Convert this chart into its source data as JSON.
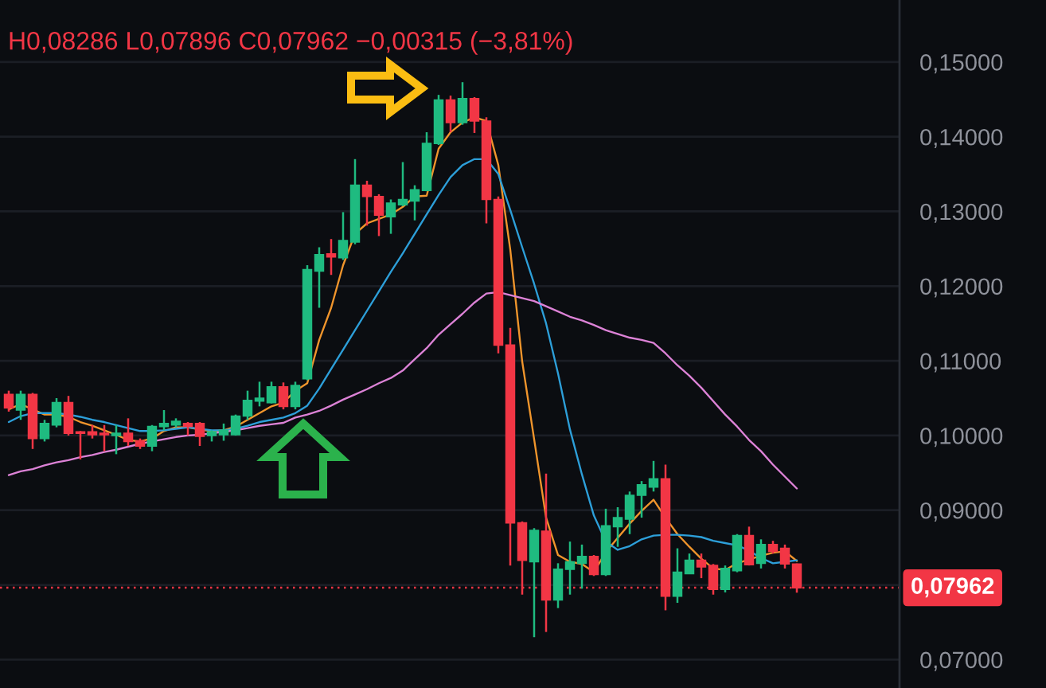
{
  "chart_data": {
    "type": "candlestick",
    "categories": [
      null,
      null,
      null,
      null,
      null,
      null,
      null,
      null,
      null,
      null,
      null,
      null,
      null,
      null,
      null,
      null,
      null,
      null,
      null,
      null,
      null,
      null,
      null,
      null,
      null,
      null,
      null,
      null,
      null,
      null,
      null,
      null,
      null,
      null,
      null,
      null,
      null,
      null,
      null,
      null,
      null,
      null,
      null,
      null,
      null,
      null,
      null,
      null,
      null,
      null,
      null,
      null,
      null,
      null,
      null,
      null,
      null,
      null,
      null,
      null,
      null,
      null,
      null,
      null,
      null,
      null,
      null
    ],
    "ohlc": [
      [
        0.1055,
        0.106,
        0.1032,
        0.1037
      ],
      [
        0.1034,
        0.106,
        0.1021,
        0.1055
      ],
      [
        0.1055,
        0.1057,
        0.0982,
        0.0996
      ],
      [
        0.0996,
        0.1021,
        0.0992,
        0.1016
      ],
      [
        0.1014,
        0.105,
        0.1011,
        0.1044
      ],
      [
        0.1044,
        0.1053,
        0.1,
        0.1003
      ],
      [
        0.1005,
        0.1006,
        0.0968,
        0.1003
      ],
      [
        0.1005,
        0.1014,
        0.0996,
        0.1001
      ],
      [
        0.1003,
        0.1014,
        0.0979,
        0.1001
      ],
      [
        0.1,
        0.1014,
        0.0975,
        0.1003
      ],
      [
        0.1003,
        0.1023,
        0.0986,
        0.0992
      ],
      [
        0.0993,
        0.0996,
        0.0982,
        0.0986
      ],
      [
        0.0986,
        0.1014,
        0.0979,
        0.1012
      ],
      [
        0.1012,
        0.1034,
        0.1007,
        0.1016
      ],
      [
        0.1014,
        0.1023,
        0.1011,
        0.1019
      ],
      [
        0.1016,
        0.1018,
        0.1,
        0.1012
      ],
      [
        0.1016,
        0.1018,
        0.0986,
        0.0999
      ],
      [
        0.1,
        0.1007,
        0.0992,
        0.1005
      ],
      [
        0.1001,
        0.1016,
        0.0993,
        0.1007
      ],
      [
        0.1001,
        0.1028,
        0.1,
        0.1026
      ],
      [
        0.1026,
        0.106,
        0.1021,
        0.1047
      ],
      [
        0.1046,
        0.1072,
        0.1039,
        0.105
      ],
      [
        0.1044,
        0.1072,
        0.1043,
        0.1065
      ],
      [
        0.1065,
        0.1071,
        0.1035,
        0.1039
      ],
      [
        0.1039,
        0.1072,
        0.1035,
        0.1067
      ],
      [
        0.1076,
        0.1228,
        0.1074,
        0.1222
      ],
      [
        0.122,
        0.1252,
        0.1171,
        0.1242
      ],
      [
        0.1243,
        0.1263,
        0.1215,
        0.1239
      ],
      [
        0.1238,
        0.1299,
        0.1235,
        0.1261
      ],
      [
        0.1259,
        0.137,
        0.1256,
        0.1335
      ],
      [
        0.1335,
        0.1341,
        0.1281,
        0.132
      ],
      [
        0.132,
        0.1323,
        0.1267,
        0.1295
      ],
      [
        0.1293,
        0.1316,
        0.127,
        0.1311
      ],
      [
        0.1309,
        0.1366,
        0.1307,
        0.1316
      ],
      [
        0.1314,
        0.1335,
        0.1288,
        0.1329
      ],
      [
        0.1328,
        0.1406,
        0.1327,
        0.1391
      ],
      [
        0.1391,
        0.1456,
        0.1389,
        0.1449
      ],
      [
        0.1449,
        0.1455,
        0.1406,
        0.1419
      ],
      [
        0.1419,
        0.1473,
        0.1416,
        0.1451
      ],
      [
        0.1451,
        0.1453,
        0.1405,
        0.1421
      ],
      [
        0.1421,
        0.1426,
        0.1284,
        0.1316
      ],
      [
        0.1316,
        0.132,
        0.111,
        0.1121
      ],
      [
        0.1121,
        0.1144,
        0.0826,
        0.0883
      ],
      [
        0.0883,
        0.0885,
        0.0787,
        0.0833
      ],
      [
        0.0831,
        0.0876,
        0.073,
        0.0873
      ],
      [
        0.0872,
        0.0949,
        0.0737,
        0.078
      ],
      [
        0.078,
        0.0829,
        0.0769,
        0.0821
      ],
      [
        0.0821,
        0.0858,
        0.0787,
        0.0831
      ],
      [
        0.0829,
        0.0854,
        0.0795,
        0.0838
      ],
      [
        0.0838,
        0.084,
        0.0812,
        0.0814
      ],
      [
        0.0814,
        0.0902,
        0.0812,
        0.0879
      ],
      [
        0.0878,
        0.0904,
        0.0851,
        0.089
      ],
      [
        0.0888,
        0.0925,
        0.0868,
        0.092
      ],
      [
        0.092,
        0.0939,
        0.089,
        0.0934
      ],
      [
        0.0931,
        0.0966,
        0.0925,
        0.0942
      ],
      [
        0.0942,
        0.0961,
        0.0766,
        0.0785
      ],
      [
        0.0785,
        0.0849,
        0.0776,
        0.0817
      ],
      [
        0.0815,
        0.0842,
        0.0815,
        0.0833
      ],
      [
        0.0833,
        0.0842,
        0.0809,
        0.0824
      ],
      [
        0.0826,
        0.0828,
        0.0787,
        0.0794
      ],
      [
        0.0794,
        0.0826,
        0.079,
        0.0822
      ],
      [
        0.0819,
        0.0868,
        0.0817,
        0.0866
      ],
      [
        0.0866,
        0.0878,
        0.0826,
        0.0827
      ],
      [
        0.0829,
        0.0861,
        0.0822,
        0.0854
      ],
      [
        0.0854,
        0.0859,
        0.0842,
        0.0845
      ],
      [
        0.0849,
        0.0854,
        0.0822,
        0.0828
      ],
      [
        0.0828,
        0.08286,
        0.07896,
        0.07962
      ]
    ],
    "colors": [
      "#f23645",
      "#1fbb80",
      "#f23645",
      "#1fbb80",
      "#1fbb80",
      "#f23645",
      "#f23645",
      "#f23645",
      "#f23645",
      "#1fbb80",
      "#f23645",
      "#f23645",
      "#1fbb80",
      "#1fbb80",
      "#1fbb80",
      "#f23645",
      "#f23645",
      "#1fbb80",
      "#1fbb80",
      "#1fbb80",
      "#1fbb80",
      "#1fbb80",
      "#1fbb80",
      "#f23645",
      "#1fbb80",
      "#1fbb80",
      "#1fbb80",
      "#f23645",
      "#1fbb80",
      "#1fbb80",
      "#f23645",
      "#f23645",
      "#1fbb80",
      "#1fbb80",
      "#1fbb80",
      "#1fbb80",
      "#1fbb80",
      "#f23645",
      "#1fbb80",
      "#f23645",
      "#f23645",
      "#f23645",
      "#f23645",
      "#f23645",
      "#1fbb80",
      "#f23645",
      "#1fbb80",
      "#1fbb80",
      "#1fbb80",
      "#f23645",
      "#1fbb80",
      "#1fbb80",
      "#1fbb80",
      "#1fbb80",
      "#1fbb80",
      "#f23645",
      "#1fbb80",
      "#1fbb80",
      "#f23645",
      "#f23645",
      "#1fbb80",
      "#1fbb80",
      "#f23645",
      "#1fbb80",
      "#f23645",
      "#f23645",
      "#f23645"
    ],
    "series": [
      {
        "type": "line",
        "color": "#f0952c",
        "values": [
          0.1035,
          0.1042,
          0.1035,
          0.1028,
          0.1028,
          0.1025,
          0.1018,
          0.1013,
          0.1007,
          0.1001,
          0.0994,
          0.0992,
          0.0996,
          0.1006,
          0.1011,
          0.1011,
          0.1008,
          0.1006,
          0.1007,
          0.1012,
          0.1021,
          0.103,
          0.1039,
          0.1044,
          0.106,
          0.107,
          0.1128,
          0.1171,
          0.1228,
          0.127,
          0.1284,
          0.129,
          0.1296,
          0.1306,
          0.132,
          0.1321,
          0.1384,
          0.1406,
          0.1419,
          0.1426,
          0.1421,
          0.1362,
          0.1249,
          0.1099,
          0.0995,
          0.089,
          0.084,
          0.0831,
          0.0828,
          0.0817,
          0.0844,
          0.0863,
          0.0882,
          0.0899,
          0.0914,
          0.089,
          0.0868,
          0.0851,
          0.0835,
          0.0822,
          0.082,
          0.0829,
          0.0834,
          0.0839,
          0.0843,
          0.0845,
          0.0832
        ]
      },
      {
        "type": "line",
        "color": "#2d9fd9",
        "values": [
          0.1018,
          0.1026,
          0.103,
          0.103,
          0.103,
          0.1028,
          0.1025,
          0.1021,
          0.1018,
          0.1014,
          0.101,
          0.1006,
          0.1006,
          0.1007,
          0.1009,
          0.1011,
          0.1009,
          0.1007,
          0.1007,
          0.1009,
          0.1013,
          0.1018,
          0.1021,
          0.1024,
          0.103,
          0.104,
          0.1063,
          0.1089,
          0.1115,
          0.1141,
          0.1167,
          0.1193,
          0.1219,
          0.1244,
          0.127,
          0.1296,
          0.1322,
          0.1346,
          0.1362,
          0.137,
          0.137,
          0.135,
          0.1302,
          0.1252,
          0.1203,
          0.115,
          0.1083,
          0.1008,
          0.0948,
          0.0893,
          0.0858,
          0.0847,
          0.0852,
          0.0861,
          0.0866,
          0.0867,
          0.0867,
          0.0866,
          0.0864,
          0.0859,
          0.0856,
          0.0853,
          0.0846,
          0.0836,
          0.0829,
          0.0831,
          0.0833
        ]
      },
      {
        "type": "line",
        "color": "#dc82d6",
        "values": [
          0.0947,
          0.0952,
          0.0955,
          0.096,
          0.0964,
          0.0967,
          0.0971,
          0.0974,
          0.0978,
          0.0981,
          0.0985,
          0.0989,
          0.0992,
          0.0995,
          0.0998,
          0.1,
          0.1001,
          0.1003,
          0.1005,
          0.1007,
          0.101,
          0.1013,
          0.1015,
          0.1017,
          0.1024,
          0.1028,
          0.1033,
          0.104,
          0.1048,
          0.1055,
          0.1062,
          0.107,
          0.1077,
          0.1087,
          0.1102,
          0.1117,
          0.1135,
          0.1149,
          0.1163,
          0.1178,
          0.119,
          0.1192,
          0.1188,
          0.1184,
          0.118,
          0.1173,
          0.1166,
          0.1159,
          0.1154,
          0.1148,
          0.1141,
          0.1136,
          0.1131,
          0.1128,
          0.1124,
          0.111,
          0.1094,
          0.108,
          0.1064,
          0.1046,
          0.1028,
          0.1012,
          0.0994,
          0.0979,
          0.0961,
          0.0945,
          0.0929
        ]
      }
    ],
    "ylim": [
      0.0662,
      0.1583
    ],
    "yticks": [
      {
        "value": 0.07,
        "label": "0,07000"
      },
      {
        "value": 0.08,
        "label": null
      },
      {
        "value": 0.09,
        "label": "0,09000"
      },
      {
        "value": 0.1,
        "label": "0,10000"
      },
      {
        "value": 0.11,
        "label": "0,11000"
      },
      {
        "value": 0.12,
        "label": "0,12000"
      },
      {
        "value": 0.13,
        "label": "0,13000"
      },
      {
        "value": 0.14,
        "label": "0,14000"
      },
      {
        "value": 0.15,
        "label": "0,15000"
      }
    ],
    "ref_lines": [
      {
        "axis": "y",
        "value": 0.07962,
        "label": "0,07962",
        "color": "#f23645",
        "line_style": "dotted"
      }
    ],
    "annotations": [
      "H0,08286 L0,07896 C0,07962 −0,00315 (−3,81%)"
    ],
    "grid": "y",
    "tick_labels": "y"
  }
}
